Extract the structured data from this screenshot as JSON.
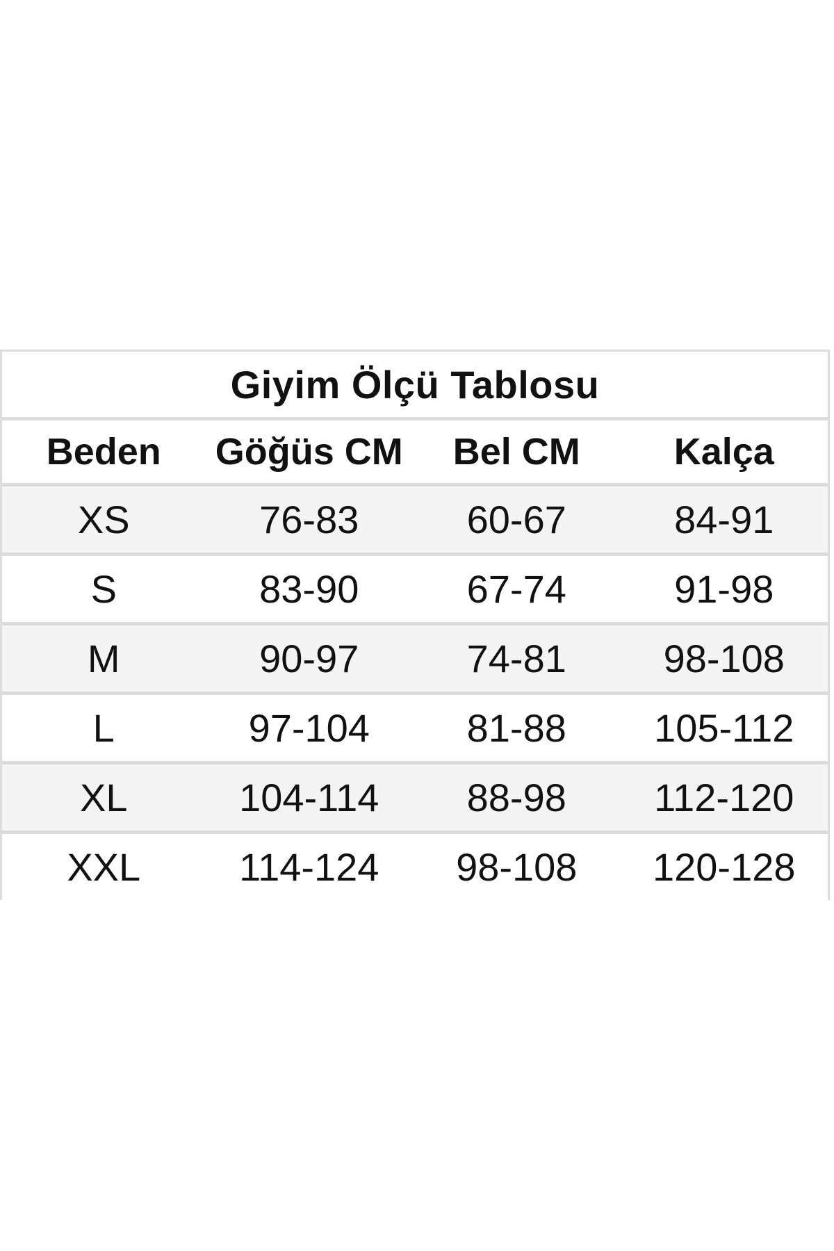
{
  "table": {
    "title": "Giyim Ölçü Tablosu",
    "headers": [
      "Beden",
      "Göğüs CM",
      "Bel CM",
      "Kalça"
    ],
    "rows": [
      [
        "XS",
        "76-83",
        "60-67",
        "84-91"
      ],
      [
        "S",
        "83-90",
        "67-74",
        "91-98"
      ],
      [
        "M",
        "90-97",
        "74-81",
        "98-108"
      ],
      [
        "L",
        "97-104",
        "81-88",
        "105-112"
      ],
      [
        "XL",
        "104-114",
        "88-98",
        "112-120"
      ],
      [
        "XXL",
        "114-124",
        "98-108",
        "120-128"
      ]
    ]
  },
  "colors": {
    "border": "#dcdcdc",
    "alt_row": "#f4f4f4",
    "text": "#111111"
  }
}
